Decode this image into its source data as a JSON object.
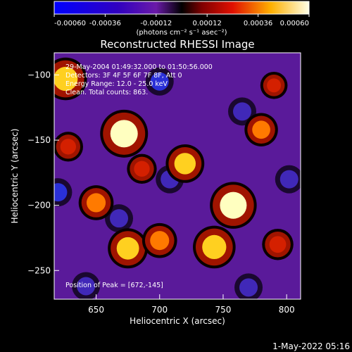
{
  "colorbar": {
    "ticks": [
      "-0.00060",
      "-0.00036",
      "-0.00012",
      "0.00012",
      "0.00036",
      "0.00060"
    ],
    "tick_values": [
      -0.0006,
      -0.00036,
      -0.00012,
      0.00012,
      0.00036,
      0.0006
    ],
    "range": [
      -0.0006,
      0.0006
    ],
    "units_label": "(photons cm⁻² s⁻¹ asec⁻²)"
  },
  "chart_data": {
    "type": "heatmap",
    "title": "Reconstructed RHESSI Image",
    "xlabel": "Heliocentric X (arcsec)",
    "ylabel": "Heliocentric Y (arcsec)",
    "xlim": [
      617,
      811
    ],
    "ylim": [
      -272,
      -83
    ],
    "x_ticks": [
      650,
      700,
      750,
      800
    ],
    "y_ticks": [
      -100,
      -150,
      -200,
      -250
    ],
    "annotations": [
      "29-May-2004 01:49:32.000 to 01:50:56.000",
      "Detectors: 3F 4F 5F 6F 7F 8F, Att 0",
      "Energy Range: 12.0 - 25.0 keV",
      "Clean. Total counts: 863."
    ],
    "peak_label": "Position of Peak = [672,-145]",
    "bright_sources": [
      {
        "x": 626,
        "y": -103,
        "level": 0.0005
      },
      {
        "x": 672,
        "y": -145,
        "level": 0.0006
      },
      {
        "x": 720,
        "y": -168,
        "level": 0.00042
      },
      {
        "x": 758,
        "y": -200,
        "level": 0.00058
      },
      {
        "x": 743,
        "y": -232,
        "level": 0.0005
      },
      {
        "x": 675,
        "y": -233,
        "level": 0.00045
      },
      {
        "x": 650,
        "y": -198,
        "level": 0.00035
      },
      {
        "x": 700,
        "y": -227,
        "level": 0.00035
      },
      {
        "x": 793,
        "y": -230,
        "level": 0.00028
      },
      {
        "x": 780,
        "y": -142,
        "level": 0.00032
      },
      {
        "x": 686,
        "y": -172,
        "level": 0.00025
      },
      {
        "x": 628,
        "y": -155,
        "level": 0.00025
      },
      {
        "x": 790,
        "y": -108,
        "level": 0.0002
      }
    ],
    "dark_sources": [
      {
        "x": 700,
        "y": -105,
        "level": -0.00035
      },
      {
        "x": 620,
        "y": -190,
        "level": -0.0004
      },
      {
        "x": 765,
        "y": -128,
        "level": -0.0003
      },
      {
        "x": 802,
        "y": -180,
        "level": -0.0003
      },
      {
        "x": 708,
        "y": -180,
        "level": -0.00025
      },
      {
        "x": 668,
        "y": -210,
        "level": -0.0002
      },
      {
        "x": 770,
        "y": -263,
        "level": -0.00025
      },
      {
        "x": 642,
        "y": -262,
        "level": -0.0002
      }
    ],
    "grid": false
  },
  "footer": {
    "timestamp": "1-May-2022 05:16"
  }
}
